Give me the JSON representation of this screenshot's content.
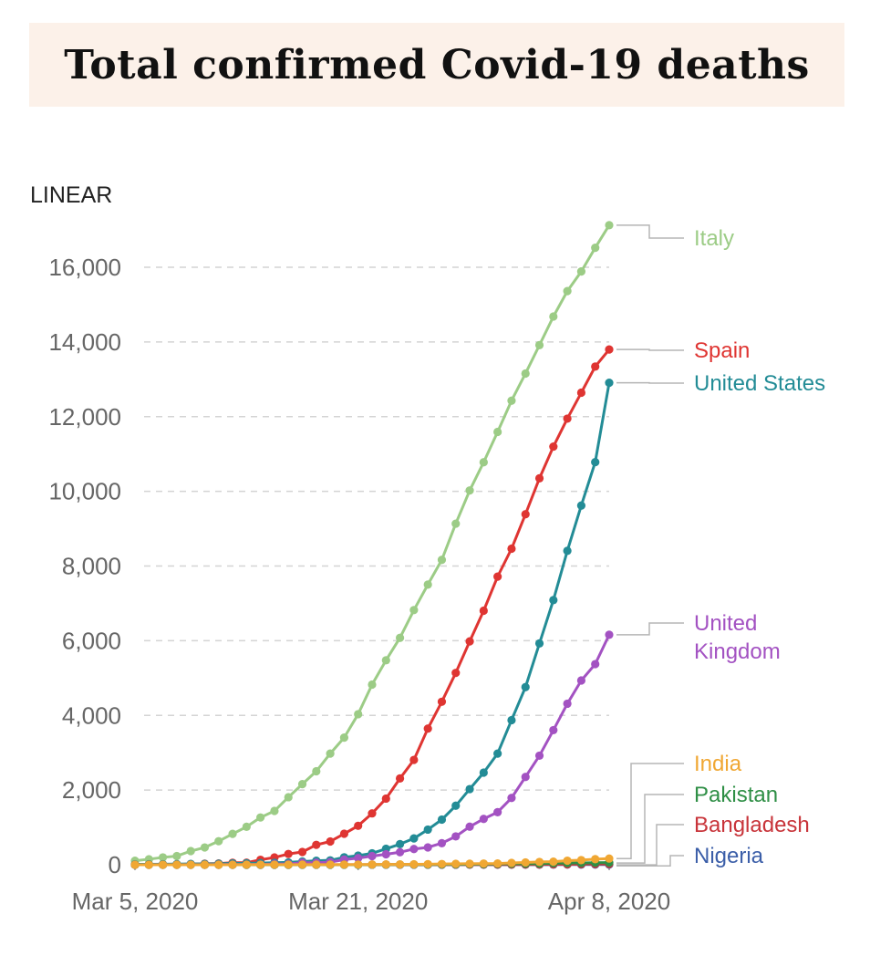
{
  "title": "Total confirmed Covid-19 deaths",
  "chart_data": {
    "type": "line",
    "title": "Total confirmed Covid-19 deaths",
    "scale_label": "LINEAR",
    "xlabel": "",
    "ylabel": "",
    "x_start": "Mar 5, 2020",
    "x_end": "Apr 8, 2020",
    "x_tick_labels": [
      {
        "day": 0,
        "label": "Mar 5, 2020"
      },
      {
        "day": 16,
        "label": "Mar 21, 2020"
      },
      {
        "day": 34,
        "label": "Apr 8, 2020"
      }
    ],
    "ylim": [
      0,
      16000
    ],
    "y_ticks": [
      0,
      2000,
      4000,
      6000,
      8000,
      10000,
      12000,
      14000,
      16000
    ],
    "y_tick_labels": [
      "0",
      "2,000",
      "4,000",
      "6,000",
      "8,000",
      "10,000",
      "12,000",
      "14,000",
      "16,000"
    ],
    "grid": true,
    "legend": "right (direct labels)",
    "series": [
      {
        "name": "Italy",
        "label_lines": [
          "Italy"
        ],
        "color": "#9ccc86",
        "values": [
          107,
          148,
          197,
          233,
          366,
          463,
          631,
          827,
          1016,
          1266,
          1441,
          1809,
          2158,
          2503,
          2978,
          3405,
          4032,
          4825,
          5476,
          6077,
          6820,
          7503,
          8165,
          9134,
          10023,
          10779,
          11591,
          12428,
          13155,
          13915,
          14681,
          15362,
          15887,
          16523,
          17127
        ]
      },
      {
        "name": "Spain",
        "label_lines": [
          "Spain"
        ],
        "color": "#df3532",
        "values": [
          2,
          3,
          5,
          10,
          17,
          28,
          35,
          54,
          55,
          133,
          195,
          289,
          342,
          533,
          623,
          830,
          1043,
          1375,
          1772,
          2311,
          2808,
          3647,
          4365,
          5138,
          5982,
          6803,
          7716,
          8464,
          9387,
          10348,
          11198,
          11947,
          12641,
          13341,
          13798
        ]
      },
      {
        "name": "United States",
        "label_lines": [
          "United States"
        ],
        "color": "#238c96",
        "values": [
          11,
          12,
          14,
          17,
          21,
          22,
          28,
          36,
          40,
          47,
          54,
          63,
          85,
          108,
          118,
          200,
          244,
          307,
          427,
          552,
          706,
          942,
          1209,
          1581,
          2026,
          2467,
          2978,
          3873,
          4757,
          5926,
          7087,
          8407,
          9619,
          10783,
          12907
        ]
      },
      {
        "name": "United Kingdom",
        "label_lines": [
          "United",
          "Kingdom"
        ],
        "color": "#a352c2",
        "values": [
          1,
          2,
          2,
          3,
          3,
          4,
          6,
          8,
          8,
          8,
          21,
          21,
          55,
          55,
          71,
          137,
          177,
          233,
          281,
          335,
          422,
          465,
          578,
          759,
          1019,
          1228,
          1408,
          1789,
          2352,
          2921,
          3605,
          4313,
          4934,
          5373,
          6159
        ]
      },
      {
        "name": "India",
        "label_lines": [
          "India"
        ],
        "color": "#f0a733",
        "values": [
          0,
          0,
          0,
          0,
          0,
          0,
          0,
          1,
          2,
          2,
          2,
          2,
          3,
          3,
          4,
          4,
          5,
          7,
          10,
          10,
          12,
          16,
          20,
          25,
          27,
          32,
          35,
          50,
          62,
          75,
          83,
          109,
          124,
          149,
          166
        ]
      },
      {
        "name": "Pakistan",
        "label_lines": [
          "Pakistan"
        ],
        "color": "#2f8f46",
        "values": [
          0,
          0,
          0,
          0,
          0,
          0,
          0,
          0,
          0,
          0,
          0,
          0,
          0,
          0,
          0,
          1,
          1,
          2,
          3,
          5,
          6,
          7,
          9,
          11,
          14,
          16,
          21,
          26,
          28,
          31,
          41,
          45,
          50,
          54,
          58
        ]
      },
      {
        "name": "Bangladesh",
        "label_lines": [
          "Bangladesh"
        ],
        "color": "#c8343a",
        "values": [
          0,
          0,
          0,
          0,
          0,
          0,
          0,
          0,
          0,
          0,
          0,
          0,
          1,
          1,
          2,
          3,
          3,
          4,
          5,
          5,
          5,
          5,
          5,
          5,
          6,
          6,
          6,
          6,
          8,
          9,
          12,
          12,
          17,
          20,
          21
        ]
      },
      {
        "name": "Nigeria",
        "label_lines": [
          "Nigeria"
        ],
        "color": "#3b5ea8",
        "values": [
          0,
          0,
          0,
          0,
          0,
          0,
          0,
          0,
          0,
          0,
          0,
          0,
          0,
          0,
          0,
          0,
          0,
          1,
          1,
          1,
          1,
          1,
          1,
          1,
          2,
          2,
          2,
          2,
          2,
          3,
          4,
          5,
          5,
          6,
          7
        ]
      }
    ]
  }
}
